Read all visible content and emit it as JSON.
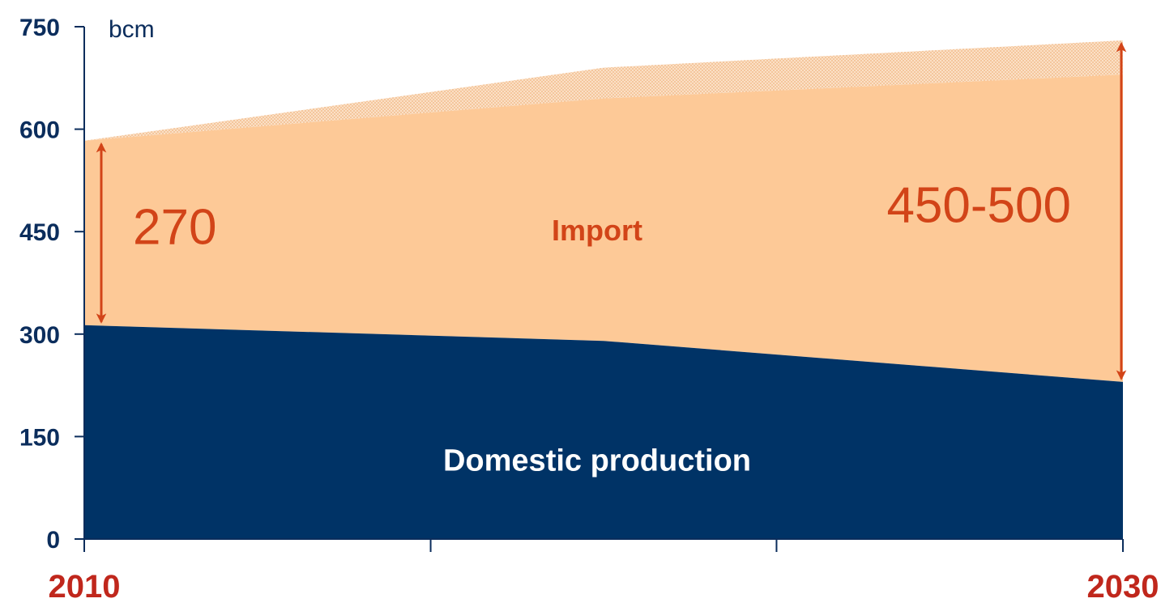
{
  "chart_data": {
    "type": "area",
    "unit_label": "bcm",
    "ylim": [
      0,
      750
    ],
    "y_ticks": [
      0,
      150,
      300,
      450,
      600,
      750
    ],
    "x_range": [
      2010,
      2030
    ],
    "x_start_label": "2010",
    "x_end_label": "2030",
    "x_points": [
      2010,
      2020,
      2030
    ],
    "x_tick_positions": [
      2010,
      2016.67,
      2023.33,
      2030
    ],
    "grid": false,
    "legend": "none",
    "series": [
      {
        "name": "Domestic production",
        "x": [
          2010,
          2020,
          2030
        ],
        "values": [
          313,
          290,
          230
        ],
        "color": "#003366"
      },
      {
        "name": "Import",
        "x": [
          2010,
          2020,
          2030
        ],
        "values": [
          270,
          355,
          450
        ],
        "color": "#fdc997"
      },
      {
        "name": "",
        "x": [
          2010,
          2020,
          2030
        ],
        "values": [
          0,
          45,
          50
        ],
        "color": "#f5c8a0",
        "pattern": "dotted"
      }
    ],
    "annotations": {
      "import_2010": "270",
      "import_2030": "450-500",
      "arrow_color": "#d24418"
    },
    "label_colors": {
      "axis_text": "#0b2d5c",
      "year_text": "#c0271c",
      "import_text": "#d24418",
      "domestic_text": "#ffffff"
    }
  }
}
